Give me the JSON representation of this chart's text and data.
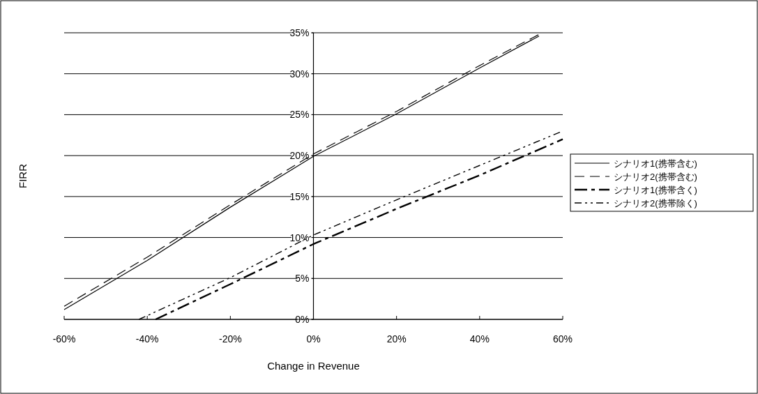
{
  "chart_data": {
    "type": "line",
    "xlabel": "Change in Revenue",
    "ylabel": "FIRR",
    "xlim": [
      -60,
      60
    ],
    "ylim": [
      0,
      35
    ],
    "xticks": [
      {
        "value": -60,
        "label": "-60%"
      },
      {
        "value": -40,
        "label": "-40%"
      },
      {
        "value": -20,
        "label": "-20%"
      },
      {
        "value": 0,
        "label": "0%"
      },
      {
        "value": 20,
        "label": "20%"
      },
      {
        "value": 40,
        "label": "40%"
      },
      {
        "value": 60,
        "label": "60%"
      }
    ],
    "yticks": [
      {
        "value": 0,
        "label": "0%"
      },
      {
        "value": 5,
        "label": "5%"
      },
      {
        "value": 10,
        "label": "10%"
      },
      {
        "value": 15,
        "label": "15%"
      },
      {
        "value": 20,
        "label": "20%"
      },
      {
        "value": 25,
        "label": "25%"
      },
      {
        "value": 30,
        "label": "30%"
      },
      {
        "value": 35,
        "label": "35%"
      }
    ],
    "grid": "y",
    "legend": "right",
    "series": [
      {
        "name": "シナリオ1(携帯含む)",
        "color": "#000000",
        "line_style": "solid",
        "x": [
          -60,
          -40,
          -20,
          0,
          20,
          40,
          54.3
        ],
        "values": [
          1.2,
          7.2,
          13.7,
          19.9,
          25.1,
          30.7,
          34.6
        ]
      },
      {
        "name": "シナリオ2(携帯含む)",
        "color": "#000000",
        "line_style": "dashed",
        "x": [
          -60,
          -40,
          -20,
          0,
          20,
          40,
          54.3
        ],
        "values": [
          1.6,
          7.6,
          14.0,
          20.2,
          25.4,
          31.0,
          34.8
        ]
      },
      {
        "name": "シナリオ1(携帯含く)",
        "color": "#000000",
        "line_style": "dashed",
        "x": [
          -38,
          -20,
          0,
          20,
          40,
          60
        ],
        "values": [
          0,
          4.3,
          9.2,
          13.5,
          17.6,
          22.0
        ]
      },
      {
        "name": "シナリオ2(携帯除く)",
        "color": "#000000",
        "line_style": "dotted",
        "x": [
          -42,
          -20,
          0,
          20,
          40,
          60
        ],
        "values": [
          0,
          5.1,
          10.3,
          14.6,
          18.8,
          23.0
        ]
      }
    ]
  }
}
